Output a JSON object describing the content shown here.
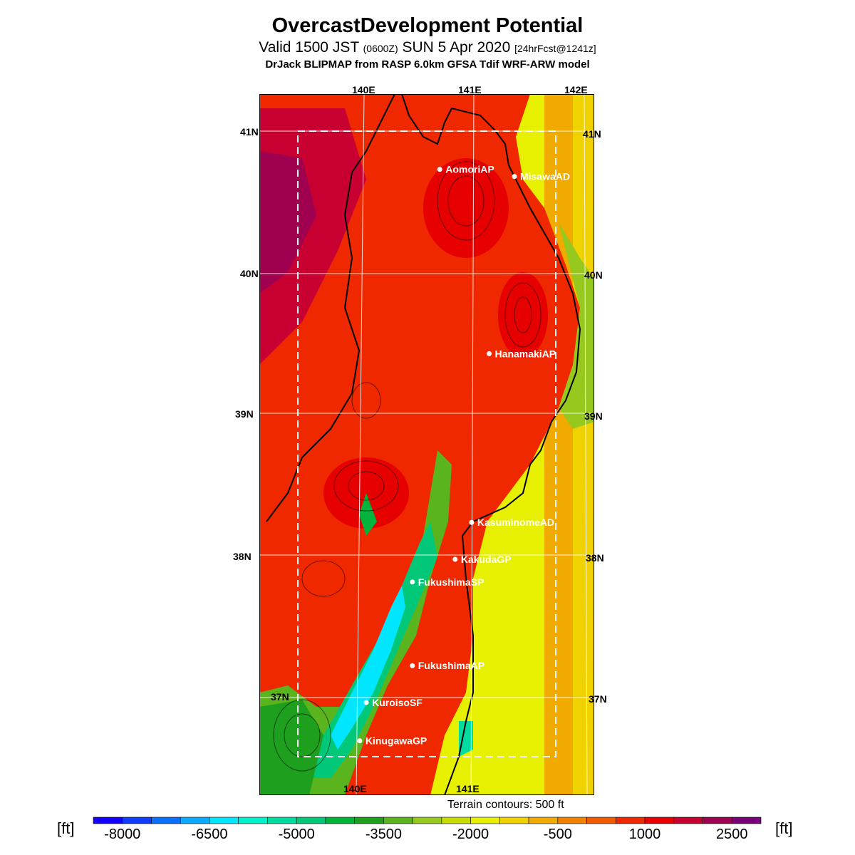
{
  "title": "OvercastDevelopment Potential",
  "subtitle": {
    "pre": "Valid 1500 JST ",
    "utc": "(0600Z)",
    "mid": " SUN 5 Apr 2020 ",
    "fcst": "[24hrFcst@1241z]"
  },
  "model_line": "DrJack BLIPMAP from RASP 6.0km GFSA Tdif WRF-ARW model",
  "terrain_note": "Terrain contours: 500 ft",
  "unit_left": "[ft]",
  "unit_right": "[ft]",
  "lon_labels_top": [
    "140E",
    "141E",
    "142E"
  ],
  "lon_labels_bottom": [
    "140E",
    "141E"
  ],
  "lat_labels": [
    "41N",
    "40N",
    "39N",
    "38N",
    "37N"
  ],
  "stations": [
    {
      "name": "AomoriAP",
      "lon": 140.69,
      "lat": 40.73
    },
    {
      "name": "MisawaAD",
      "lon": 141.37,
      "lat": 40.68
    },
    {
      "name": "HanamakiAP",
      "lon": 141.14,
      "lat": 39.43
    },
    {
      "name": "KasuminomeAD",
      "lon": 140.98,
      "lat": 38.24
    },
    {
      "name": "KakudaGP",
      "lon": 140.83,
      "lat": 37.98
    },
    {
      "name": "FukushimaSP",
      "lon": 140.44,
      "lat": 37.82
    },
    {
      "name": "FukushimaAP",
      "lon": 140.44,
      "lat": 37.23
    },
    {
      "name": "KuroisoSF",
      "lon": 140.02,
      "lat": 36.97
    },
    {
      "name": "KinugawaGP",
      "lon": 139.96,
      "lat": 36.7
    }
  ],
  "colorbar": {
    "colors": [
      "#1400ff",
      "#0f3cff",
      "#0a6eff",
      "#0aaaff",
      "#00e6ff",
      "#00f0c8",
      "#00dca0",
      "#00c878",
      "#00b43c",
      "#1ea01e",
      "#5ab41e",
      "#96c81e",
      "#c8dc00",
      "#e6f000",
      "#f0d200",
      "#f0aa00",
      "#f08200",
      "#f05a00",
      "#f02800",
      "#e60000",
      "#c80032",
      "#a00050",
      "#780078"
    ],
    "ticks": [
      "-8000",
      "-6500",
      "-5000",
      "-3500",
      "-2000",
      "-500",
      "1000",
      "2500"
    ]
  },
  "map_colors": {
    "sea_east_near": "#e6f000",
    "sea_east_far": "#f0aa00",
    "land_main": "#f02800",
    "land_high": "#e60000",
    "west_coast": "#a00050",
    "valley_green": "#00b43c",
    "valley_cyan": "#00e6ff",
    "coast_green": "#96c81e"
  }
}
